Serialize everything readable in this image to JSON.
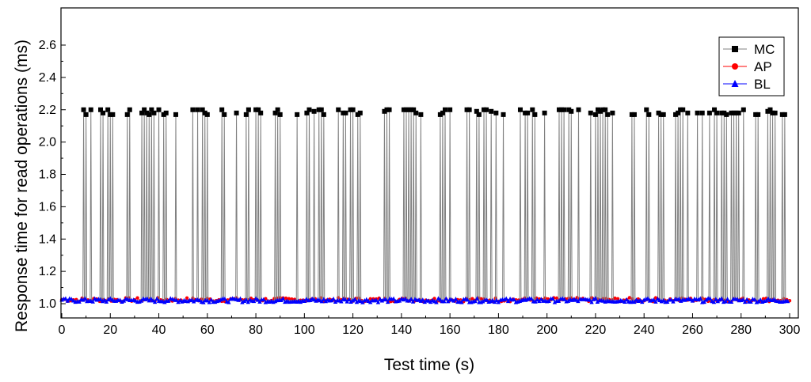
{
  "chart_data": {
    "type": "line",
    "title": "",
    "xlabel": "Test time (s)",
    "ylabel": "Response time for read operations (ms)",
    "xlim": [
      0,
      300
    ],
    "ylim": [
      0.95,
      2.6
    ],
    "xticks": [
      "0",
      "20",
      "40",
      "60",
      "80",
      "100",
      "120",
      "140",
      "160",
      "180",
      "200",
      "220",
      "240",
      "260",
      "280",
      "300"
    ],
    "yticks": [
      "1.0",
      "1.2",
      "1.4",
      "1.6",
      "1.8",
      "2.0",
      "2.2",
      "2.4",
      "2.6"
    ],
    "grid": false,
    "legend_position": "top-right",
    "baseline_ms": 1.02,
    "series": [
      {
        "name": "MC",
        "color": "#000000",
        "marker": "square",
        "spikes": [
          {
            "t": 9,
            "v": 2.2
          },
          {
            "t": 10,
            "v": 2.17
          },
          {
            "t": 12,
            "v": 2.2
          },
          {
            "t": 16,
            "v": 2.2
          },
          {
            "t": 17,
            "v": 2.18
          },
          {
            "t": 19,
            "v": 2.2
          },
          {
            "t": 20,
            "v": 2.17
          },
          {
            "t": 21,
            "v": 2.17
          },
          {
            "t": 27,
            "v": 2.17
          },
          {
            "t": 28,
            "v": 2.2
          },
          {
            "t": 33,
            "v": 2.18
          },
          {
            "t": 34,
            "v": 2.2
          },
          {
            "t": 35,
            "v": 2.18
          },
          {
            "t": 36,
            "v": 2.17
          },
          {
            "t": 37,
            "v": 2.2
          },
          {
            "t": 38,
            "v": 2.18
          },
          {
            "t": 40,
            "v": 2.2
          },
          {
            "t": 42,
            "v": 2.17
          },
          {
            "t": 43,
            "v": 2.18
          },
          {
            "t": 47,
            "v": 2.17
          },
          {
            "t": 54,
            "v": 2.2
          },
          {
            "t": 56,
            "v": 2.2
          },
          {
            "t": 58,
            "v": 2.2
          },
          {
            "t": 59,
            "v": 2.18
          },
          {
            "t": 60,
            "v": 2.17
          },
          {
            "t": 66,
            "v": 2.2
          },
          {
            "t": 67,
            "v": 2.17
          },
          {
            "t": 72,
            "v": 2.18
          },
          {
            "t": 76,
            "v": 2.17
          },
          {
            "t": 77,
            "v": 2.2
          },
          {
            "t": 80,
            "v": 2.2
          },
          {
            "t": 81,
            "v": 2.2
          },
          {
            "t": 82,
            "v": 2.18
          },
          {
            "t": 88,
            "v": 2.18
          },
          {
            "t": 89,
            "v": 2.2
          },
          {
            "t": 90,
            "v": 2.17
          },
          {
            "t": 97,
            "v": 2.17
          },
          {
            "t": 101,
            "v": 2.18
          },
          {
            "t": 102,
            "v": 2.2
          },
          {
            "t": 104,
            "v": 2.19
          },
          {
            "t": 106,
            "v": 2.2
          },
          {
            "t": 107,
            "v": 2.2
          },
          {
            "t": 108,
            "v": 2.17
          },
          {
            "t": 114,
            "v": 2.2
          },
          {
            "t": 116,
            "v": 2.18
          },
          {
            "t": 117,
            "v": 2.18
          },
          {
            "t": 119,
            "v": 2.2
          },
          {
            "t": 120,
            "v": 2.2
          },
          {
            "t": 122,
            "v": 2.17
          },
          {
            "t": 123,
            "v": 2.18
          },
          {
            "t": 133,
            "v": 2.19
          },
          {
            "t": 134,
            "v": 2.2
          },
          {
            "t": 135,
            "v": 2.2
          },
          {
            "t": 141,
            "v": 2.2
          },
          {
            "t": 142,
            "v": 2.2
          },
          {
            "t": 143,
            "v": 2.2
          },
          {
            "t": 144,
            "v": 2.2
          },
          {
            "t": 145,
            "v": 2.2
          },
          {
            "t": 146,
            "v": 2.18
          },
          {
            "t": 148,
            "v": 2.17
          },
          {
            "t": 156,
            "v": 2.17
          },
          {
            "t": 157,
            "v": 2.18
          },
          {
            "t": 158,
            "v": 2.2
          },
          {
            "t": 160,
            "v": 2.2
          },
          {
            "t": 167,
            "v": 2.2
          },
          {
            "t": 168,
            "v": 2.2
          },
          {
            "t": 171,
            "v": 2.19
          },
          {
            "t": 172,
            "v": 2.17
          },
          {
            "t": 174,
            "v": 2.2
          },
          {
            "t": 175,
            "v": 2.2
          },
          {
            "t": 177,
            "v": 2.19
          },
          {
            "t": 179,
            "v": 2.18
          },
          {
            "t": 182,
            "v": 2.17
          },
          {
            "t": 189,
            "v": 2.2
          },
          {
            "t": 191,
            "v": 2.18
          },
          {
            "t": 192,
            "v": 2.18
          },
          {
            "t": 194,
            "v": 2.2
          },
          {
            "t": 195,
            "v": 2.17
          },
          {
            "t": 199,
            "v": 2.18
          },
          {
            "t": 205,
            "v": 2.2
          },
          {
            "t": 206,
            "v": 2.2
          },
          {
            "t": 207,
            "v": 2.2
          },
          {
            "t": 209,
            "v": 2.2
          },
          {
            "t": 210,
            "v": 2.19
          },
          {
            "t": 213,
            "v": 2.2
          },
          {
            "t": 218,
            "v": 2.18
          },
          {
            "t": 220,
            "v": 2.17
          },
          {
            "t": 221,
            "v": 2.2
          },
          {
            "t": 222,
            "v": 2.19
          },
          {
            "t": 223,
            "v": 2.2
          },
          {
            "t": 224,
            "v": 2.2
          },
          {
            "t": 225,
            "v": 2.17
          },
          {
            "t": 227,
            "v": 2.18
          },
          {
            "t": 235,
            "v": 2.17
          },
          {
            "t": 236,
            "v": 2.17
          },
          {
            "t": 241,
            "v": 2.2
          },
          {
            "t": 242,
            "v": 2.17
          },
          {
            "t": 246,
            "v": 2.18
          },
          {
            "t": 247,
            "v": 2.17
          },
          {
            "t": 248,
            "v": 2.17
          },
          {
            "t": 253,
            "v": 2.17
          },
          {
            "t": 254,
            "v": 2.18
          },
          {
            "t": 255,
            "v": 2.2
          },
          {
            "t": 256,
            "v": 2.2
          },
          {
            "t": 258,
            "v": 2.18
          },
          {
            "t": 262,
            "v": 2.18
          },
          {
            "t": 264,
            "v": 2.18
          },
          {
            "t": 267,
            "v": 2.18
          },
          {
            "t": 269,
            "v": 2.2
          },
          {
            "t": 270,
            "v": 2.18
          },
          {
            "t": 272,
            "v": 2.18
          },
          {
            "t": 273,
            "v": 2.18
          },
          {
            "t": 274,
            "v": 2.17
          },
          {
            "t": 276,
            "v": 2.18
          },
          {
            "t": 277,
            "v": 2.18
          },
          {
            "t": 278,
            "v": 2.18
          },
          {
            "t": 279,
            "v": 2.18
          },
          {
            "t": 281,
            "v": 2.2
          },
          {
            "t": 286,
            "v": 2.17
          },
          {
            "t": 287,
            "v": 2.17
          },
          {
            "t": 291,
            "v": 2.19
          },
          {
            "t": 292,
            "v": 2.2
          },
          {
            "t": 293,
            "v": 2.18
          },
          {
            "t": 294,
            "v": 2.18
          },
          {
            "t": 297,
            "v": 2.17
          },
          {
            "t": 298,
            "v": 2.17
          }
        ]
      },
      {
        "name": "AP",
        "color": "#ff0000",
        "marker": "circle",
        "baseline": 1.025,
        "amplitude": 0.012
      },
      {
        "name": "BL",
        "color": "#0000ff",
        "marker": "triangle",
        "baseline": 1.02,
        "amplitude": 0.012
      }
    ]
  }
}
